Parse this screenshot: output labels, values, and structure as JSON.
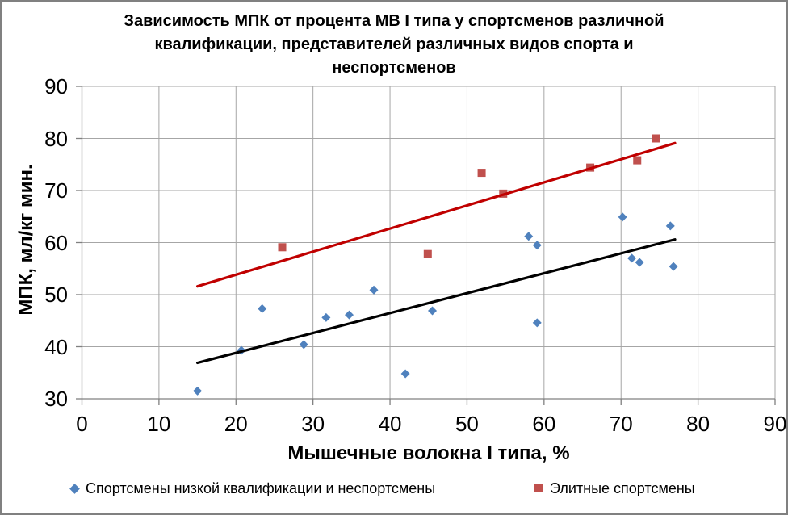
{
  "title": {
    "lines": [
      "Зависимость МПК от процента МВ I типа у спортсменов различной",
      "квалификации, представителей различных видов спорта и",
      "неспортсменов"
    ]
  },
  "colors": {
    "grid": "#A6A6A6",
    "axis": "#808080",
    "frame_border": "#808080",
    "blue_series": "#4F81BD",
    "red_series": "#C0504D",
    "black_trendline": "#000000",
    "red_trendline": "#C00000",
    "text": "#000000"
  },
  "chart_data": {
    "type": "scatter",
    "title": "Зависимость МПК от процента МВ I типа у спортсменов различной квалификации, представителей различных видов спорта и неспортсменов",
    "xlabel": "Мышечные волокна I типа, %",
    "ylabel": "МПК, мл/кг мин.",
    "xlim": [
      0,
      90
    ],
    "ylim": [
      30,
      90
    ],
    "xticks": [
      0,
      10,
      20,
      30,
      40,
      50,
      60,
      70,
      80,
      90
    ],
    "yticks": [
      30,
      40,
      50,
      60,
      70,
      80,
      90
    ],
    "grid": true,
    "legend_position": "bottom",
    "series": [
      {
        "name": "Спортсмены низкой квалификации и неспортсмены",
        "marker": "diamond",
        "color": "#4F81BD",
        "points": [
          [
            15,
            31.5
          ],
          [
            20.7,
            39.3
          ],
          [
            23.4,
            47.3
          ],
          [
            28.8,
            40.4
          ],
          [
            31.7,
            45.6
          ],
          [
            34.7,
            46.1
          ],
          [
            37.9,
            50.9
          ],
          [
            42,
            34.8
          ],
          [
            45.5,
            46.9
          ],
          [
            58,
            61.2
          ],
          [
            59.1,
            59.5
          ],
          [
            59.1,
            44.6
          ],
          [
            70.2,
            64.9
          ],
          [
            71.4,
            57.0
          ],
          [
            72.4,
            56.2
          ],
          [
            76.4,
            63.2
          ],
          [
            76.8,
            55.4
          ]
        ]
      },
      {
        "name": "Элитные спортсмены",
        "marker": "square",
        "color": "#C0504D",
        "points": [
          [
            26,
            59.1
          ],
          [
            44.9,
            57.8
          ],
          [
            51.9,
            73.4
          ],
          [
            54.7,
            69.4
          ],
          [
            66,
            74.4
          ],
          [
            72.1,
            75.8
          ],
          [
            74.5,
            80
          ]
        ]
      }
    ],
    "trendlines": [
      {
        "series": "Спортсмены низкой квалификации и неспортсмены",
        "color": "#000000",
        "from": [
          15,
          36.9
        ],
        "to": [
          77,
          60.6
        ]
      },
      {
        "series": "Элитные спортсмены",
        "color": "#C00000",
        "from": [
          15,
          51.6
        ],
        "to": [
          77,
          79.1
        ]
      }
    ]
  }
}
